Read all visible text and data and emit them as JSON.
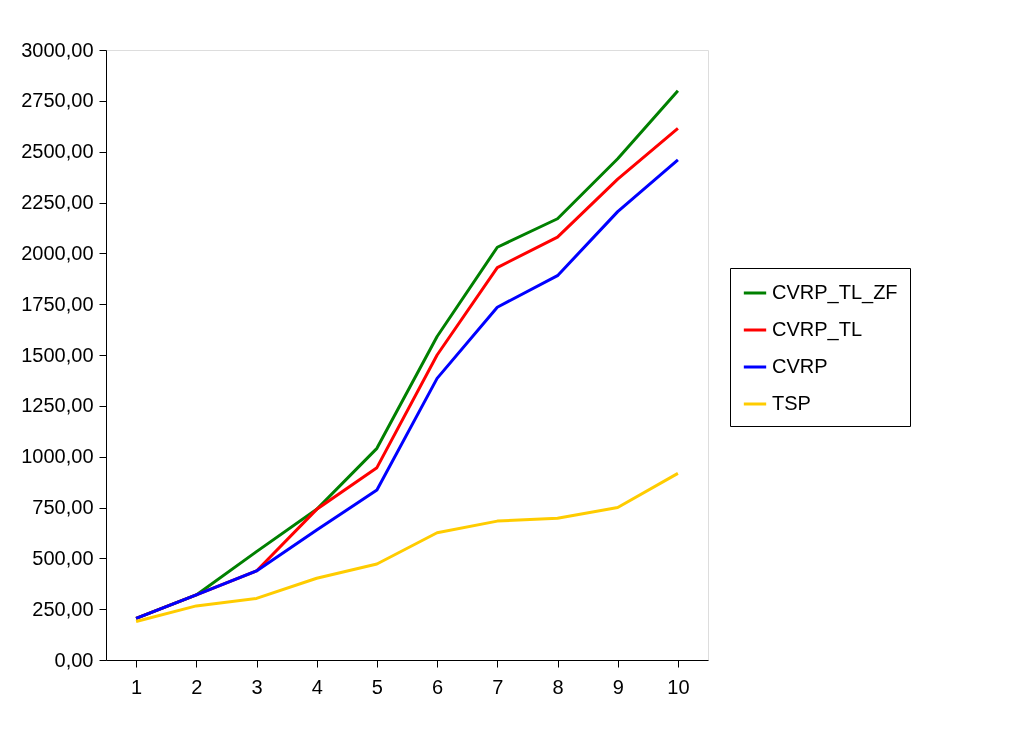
{
  "chart_data": {
    "type": "line",
    "categories": [
      "1",
      "2",
      "3",
      "4",
      "5",
      "6",
      "7",
      "8",
      "9",
      "10"
    ],
    "series": [
      {
        "name": "CVRP_TL_ZF",
        "color": "#008000",
        "values": [
          205,
          320,
          533,
          741,
          1041,
          1591,
          2030,
          2170,
          2465,
          2800
        ]
      },
      {
        "name": "CVRP_TL",
        "color": "#ff0000",
        "values": [
          205,
          320,
          438,
          741,
          946,
          1500,
          1930,
          2080,
          2365,
          2615
        ]
      },
      {
        "name": "CVRP",
        "color": "#0000ff",
        "values": [
          205,
          320,
          438,
          639,
          836,
          1385,
          1735,
          1890,
          2205,
          2460
        ]
      },
      {
        "name": "TSP",
        "color": "#ffcc00",
        "values": [
          189,
          266,
          303,
          402,
          472,
          626,
          683,
          697,
          750,
          918
        ]
      }
    ],
    "ylim": [
      0,
      3000
    ],
    "yticks": [
      {
        "value": 0,
        "label": "0,00"
      },
      {
        "value": 250,
        "label": "250,00"
      },
      {
        "value": 500,
        "label": "500,00"
      },
      {
        "value": 750,
        "label": "750,00"
      },
      {
        "value": 1000,
        "label": "1000,00"
      },
      {
        "value": 1250,
        "label": "1250,00"
      },
      {
        "value": 1500,
        "label": "1500,00"
      },
      {
        "value": 1750,
        "label": "1750,00"
      },
      {
        "value": 2000,
        "label": "2000,00"
      },
      {
        "value": 2250,
        "label": "2250,00"
      },
      {
        "value": 2500,
        "label": "2500,00"
      },
      {
        "value": 2750,
        "label": "2750,00"
      },
      {
        "value": 3000,
        "label": "3000,00"
      }
    ],
    "grid": false,
    "legend": "right",
    "marker": "none",
    "line_style": "solid"
  }
}
